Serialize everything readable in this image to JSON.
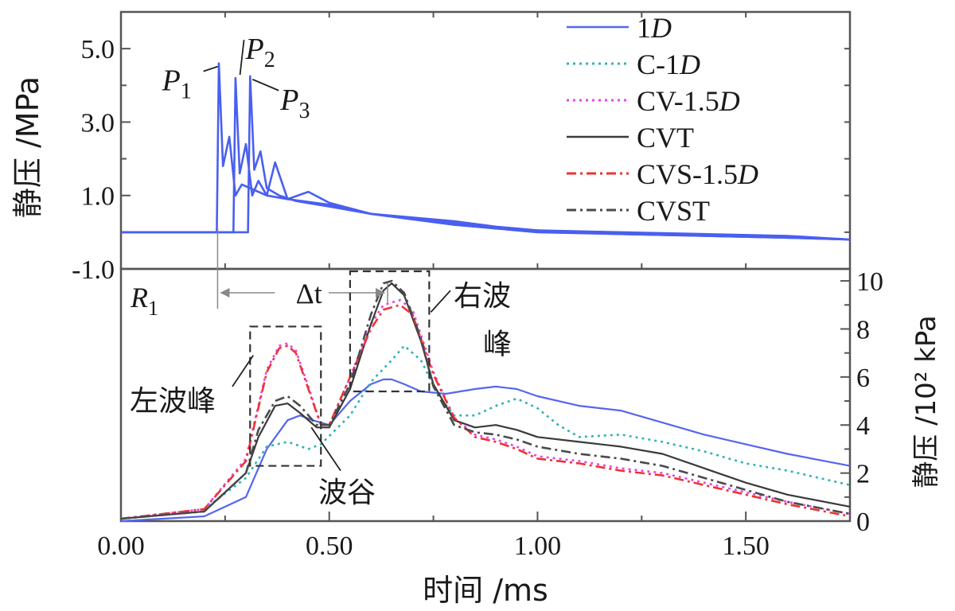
{
  "chart_data": [
    {
      "type": "line",
      "panel": "top",
      "ylabel": "静压 /MPa",
      "ylim": [
        -1.0,
        6.0
      ],
      "yticks": [
        "-1.0",
        "1.0",
        "3.0",
        "5.0"
      ],
      "xlim": [
        0.0,
        1.75
      ],
      "peak_labels": [
        {
          "base": "P",
          "sub": "1",
          "x": 0.24,
          "y": 4.6
        },
        {
          "base": "P",
          "sub": "2",
          "x": 0.28,
          "y": 4.2
        },
        {
          "base": "P",
          "sub": "3",
          "x": 0.31,
          "y": 4.25
        }
      ],
      "series": [
        {
          "name": "1D",
          "color": "#4a5ff0",
          "x": [
            0.0,
            0.23,
            0.235,
            0.245,
            0.26,
            0.275,
            0.29,
            0.31,
            0.35,
            0.4,
            0.5,
            0.6,
            0.7,
            0.8,
            0.9,
            1.0,
            1.2,
            1.4,
            1.6,
            1.75
          ],
          "y": [
            0.0,
            0.0,
            4.6,
            1.8,
            2.6,
            1.0,
            1.3,
            1.2,
            1.0,
            0.9,
            0.75,
            0.5,
            0.35,
            0.25,
            0.1,
            0.05,
            -0.05,
            -0.1,
            -0.15,
            -0.2
          ]
        },
        {
          "name": "1D",
          "color": "#4a5ff0",
          "x": [
            0.0,
            0.27,
            0.275,
            0.285,
            0.3,
            0.315,
            0.33,
            0.35,
            0.37,
            0.4,
            0.45,
            0.5,
            0.6,
            0.7,
            0.8,
            0.9,
            1.0,
            1.2,
            1.4,
            1.6,
            1.75
          ],
          "y": [
            0.0,
            0.0,
            4.2,
            1.6,
            2.4,
            1.0,
            1.4,
            1.0,
            1.9,
            0.9,
            1.1,
            0.8,
            0.5,
            0.4,
            0.3,
            0.15,
            0.05,
            0.0,
            -0.05,
            -0.1,
            -0.2
          ]
        },
        {
          "name": "1D",
          "color": "#4a5ff0",
          "x": [
            0.0,
            0.305,
            0.31,
            0.32,
            0.335,
            0.35,
            0.38,
            0.42,
            0.5,
            0.6,
            0.7,
            0.8,
            0.9,
            1.0,
            1.2,
            1.4,
            1.6,
            1.75
          ],
          "y": [
            0.0,
            0.0,
            4.25,
            1.7,
            2.2,
            1.2,
            1.0,
            0.85,
            0.7,
            0.5,
            0.35,
            0.2,
            0.1,
            0.0,
            -0.05,
            -0.1,
            -0.15,
            -0.2
          ]
        }
      ]
    },
    {
      "type": "line",
      "panel": "bottom",
      "xlabel": "时间 /ms",
      "ylabel": "静压 /10² kPa",
      "xlim": [
        0.0,
        1.75
      ],
      "ylim": [
        0,
        10.5
      ],
      "xticks": [
        "0.00",
        "0.50",
        "1.00",
        "1.50"
      ],
      "yticks": [
        "0",
        "2",
        "4",
        "6",
        "8",
        "10"
      ],
      "panel_label": {
        "base": "R",
        "sub": "1"
      },
      "interval_label": "Δt",
      "annotations": [
        "左波峰",
        "右波峰",
        "波谷"
      ],
      "series": [
        {
          "name": "1D",
          "style": "solid",
          "color": "#5566ee",
          "x": [
            0.0,
            0.2,
            0.3,
            0.35,
            0.4,
            0.43,
            0.46,
            0.5,
            0.55,
            0.6,
            0.63,
            0.65,
            0.68,
            0.72,
            0.78,
            0.85,
            0.9,
            0.95,
            1.0,
            1.1,
            1.2,
            1.3,
            1.4,
            1.5,
            1.6,
            1.75
          ],
          "y": [
            0.0,
            0.2,
            1.0,
            3.0,
            4.2,
            4.4,
            4.2,
            4.0,
            5.0,
            5.7,
            5.9,
            5.9,
            5.7,
            5.4,
            5.3,
            5.5,
            5.6,
            5.5,
            5.2,
            4.8,
            4.6,
            4.1,
            3.6,
            3.2,
            2.8,
            2.3
          ]
        },
        {
          "name": "C-1D",
          "style": "dotted",
          "color": "#33b3b3",
          "x": [
            0.0,
            0.2,
            0.3,
            0.35,
            0.4,
            0.45,
            0.48,
            0.55,
            0.6,
            0.65,
            0.68,
            0.72,
            0.76,
            0.8,
            0.85,
            0.9,
            0.95,
            1.0,
            1.05,
            1.1,
            1.2,
            1.3,
            1.4,
            1.5,
            1.6,
            1.75
          ],
          "y": [
            0.1,
            0.5,
            1.8,
            3.1,
            3.3,
            3.0,
            3.2,
            4.4,
            5.8,
            6.7,
            7.3,
            6.7,
            5.3,
            4.4,
            4.4,
            4.8,
            5.1,
            4.7,
            4.0,
            3.5,
            3.6,
            3.3,
            2.9,
            2.4,
            2.1,
            1.5
          ]
        },
        {
          "name": "CV-1.5D",
          "style": "dotted",
          "color": "#e844e8",
          "x": [
            0.0,
            0.2,
            0.3,
            0.35,
            0.38,
            0.4,
            0.42,
            0.45,
            0.48,
            0.5,
            0.55,
            0.6,
            0.63,
            0.67,
            0.7,
            0.75,
            0.8,
            0.85,
            0.9,
            0.95,
            1.0,
            1.1,
            1.2,
            1.3,
            1.4,
            1.5,
            1.6,
            1.75
          ],
          "y": [
            0.1,
            0.5,
            2.6,
            6.3,
            7.3,
            7.4,
            7.1,
            5.6,
            4.0,
            4.0,
            6.0,
            8.2,
            9.0,
            9.2,
            8.8,
            6.2,
            4.3,
            3.6,
            3.4,
            3.1,
            2.7,
            2.5,
            2.2,
            2.0,
            1.6,
            1.2,
            0.8,
            0.3
          ]
        },
        {
          "name": "CVT",
          "style": "solid",
          "color": "#3a3a3a",
          "x": [
            0.0,
            0.2,
            0.3,
            0.33,
            0.37,
            0.4,
            0.43,
            0.47,
            0.5,
            0.55,
            0.6,
            0.63,
            0.65,
            0.68,
            0.72,
            0.75,
            0.8,
            0.85,
            0.9,
            0.95,
            1.0,
            1.1,
            1.2,
            1.3,
            1.4,
            1.5,
            1.6,
            1.75
          ],
          "y": [
            0.1,
            0.4,
            2.0,
            3.5,
            4.8,
            4.9,
            4.5,
            3.9,
            3.9,
            5.5,
            8.2,
            9.6,
            9.9,
            9.4,
            7.5,
            5.7,
            4.2,
            3.9,
            4.0,
            3.8,
            3.5,
            3.3,
            3.1,
            2.8,
            2.2,
            1.6,
            1.1,
            0.6
          ]
        },
        {
          "name": "CVS-1.5D",
          "style": "dashdot",
          "color": "#ee3333",
          "x": [
            0.0,
            0.2,
            0.3,
            0.35,
            0.38,
            0.4,
            0.42,
            0.45,
            0.48,
            0.5,
            0.55,
            0.6,
            0.63,
            0.67,
            0.7,
            0.75,
            0.8,
            0.85,
            0.9,
            0.95,
            1.0,
            1.1,
            1.2,
            1.3,
            1.4,
            1.5,
            1.6,
            1.75
          ],
          "y": [
            0.1,
            0.5,
            2.5,
            6.2,
            7.2,
            7.3,
            7.0,
            5.5,
            4.0,
            4.0,
            6.0,
            8.0,
            8.8,
            9.0,
            8.6,
            6.1,
            4.3,
            3.5,
            3.3,
            3.0,
            2.6,
            2.4,
            2.1,
            1.9,
            1.5,
            1.1,
            0.7,
            0.2
          ]
        },
        {
          "name": "CVST",
          "style": "dashdot",
          "color": "#4a4a4a",
          "x": [
            0.0,
            0.2,
            0.3,
            0.33,
            0.37,
            0.4,
            0.43,
            0.47,
            0.5,
            0.55,
            0.6,
            0.63,
            0.65,
            0.68,
            0.72,
            0.75,
            0.8,
            0.85,
            0.9,
            0.95,
            1.0,
            1.1,
            1.2,
            1.3,
            1.4,
            1.5,
            1.6,
            1.75
          ],
          "y": [
            0.1,
            0.4,
            2.0,
            3.8,
            5.0,
            5.2,
            4.8,
            4.0,
            4.0,
            5.7,
            8.6,
            9.9,
            10.0,
            9.5,
            7.6,
            5.6,
            4.0,
            3.7,
            3.6,
            3.4,
            3.1,
            2.8,
            2.6,
            2.3,
            1.8,
            1.3,
            0.8,
            0.3
          ]
        }
      ]
    }
  ],
  "legend": [
    {
      "name": "1D",
      "base": "1",
      "italic": "D",
      "suffix": "",
      "style": "solid",
      "color": "#5566ee"
    },
    {
      "name": "C-1D",
      "base": "C-1",
      "italic": "D",
      "suffix": "",
      "style": "dotted",
      "color": "#33b3b3"
    },
    {
      "name": "CV-1.5D",
      "base": "CV-1.5",
      "italic": "D",
      "suffix": "",
      "style": "dotted",
      "color": "#e844e8"
    },
    {
      "name": "CVT",
      "base": "CVT",
      "italic": "",
      "suffix": "",
      "style": "solid",
      "color": "#3a3a3a"
    },
    {
      "name": "CVS-1.5D",
      "base": "CVS-1.5",
      "italic": "D",
      "suffix": "",
      "style": "dashdot",
      "color": "#ee3333"
    },
    {
      "name": "CVST",
      "base": "CVST",
      "italic": "",
      "suffix": "",
      "style": "dashdot",
      "color": "#4a4a4a"
    }
  ]
}
